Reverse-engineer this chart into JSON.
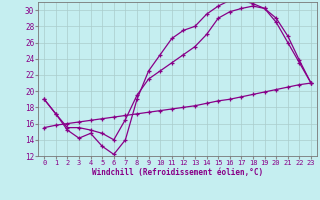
{
  "xlabel": "Windchill (Refroidissement éolien,°C)",
  "bg_color": "#c5eef0",
  "line_color": "#880088",
  "grid_color": "#aacccc",
  "xlim": [
    -0.5,
    23.5
  ],
  "ylim": [
    12,
    31
  ],
  "xticks": [
    0,
    1,
    2,
    3,
    4,
    5,
    6,
    7,
    8,
    9,
    10,
    11,
    12,
    13,
    14,
    15,
    16,
    17,
    18,
    19,
    20,
    21,
    22,
    23
  ],
  "yticks": [
    12,
    14,
    16,
    18,
    20,
    22,
    24,
    26,
    28,
    30
  ],
  "line1_x": [
    0,
    1,
    2,
    3,
    4,
    5,
    6,
    7,
    8,
    9,
    10,
    11,
    12,
    13,
    14,
    15,
    16,
    17,
    18,
    19,
    20,
    21,
    22,
    23
  ],
  "line1_y": [
    19.0,
    17.2,
    15.2,
    14.2,
    14.8,
    13.2,
    12.2,
    14.0,
    19.0,
    22.5,
    24.5,
    26.5,
    27.5,
    28.0,
    29.5,
    30.5,
    31.2,
    31.2,
    30.8,
    30.2,
    29.0,
    26.8,
    23.8,
    21.0
  ],
  "line2_x": [
    0,
    1,
    2,
    3,
    4,
    5,
    6,
    7,
    8,
    9,
    10,
    11,
    12,
    13,
    14,
    15,
    16,
    17,
    18,
    19,
    20,
    21,
    22,
    23
  ],
  "line2_y": [
    19.0,
    17.2,
    15.5,
    15.5,
    15.2,
    14.8,
    14.0,
    16.5,
    19.5,
    21.5,
    22.5,
    23.5,
    24.5,
    25.5,
    27.0,
    29.0,
    29.8,
    30.2,
    30.5,
    30.2,
    28.5,
    26.0,
    23.5,
    21.0
  ],
  "line3_x": [
    0,
    1,
    2,
    3,
    4,
    5,
    6,
    7,
    8,
    9,
    10,
    11,
    12,
    13,
    14,
    15,
    16,
    17,
    18,
    19,
    20,
    21,
    22,
    23
  ],
  "line3_y": [
    15.5,
    15.8,
    16.0,
    16.2,
    16.4,
    16.6,
    16.8,
    17.0,
    17.2,
    17.4,
    17.6,
    17.8,
    18.0,
    18.2,
    18.5,
    18.8,
    19.0,
    19.3,
    19.6,
    19.9,
    20.2,
    20.5,
    20.8,
    21.0
  ]
}
